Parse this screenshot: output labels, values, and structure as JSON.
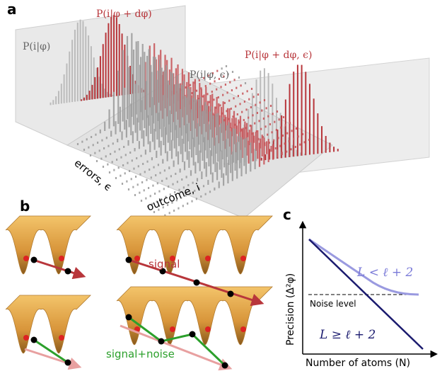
{
  "panels": {
    "a": {
      "label": "a",
      "dist_labels": [
        "P(i|φ)",
        "P(i|φ + dφ)",
        "P(i|φ, ϵ)",
        "P(i|φ + dφ, ϵ)"
      ],
      "axis_labels": [
        "errors, ϵ",
        "outcome, i"
      ]
    },
    "b": {
      "label": "b",
      "annotations": [
        "signal",
        "signal+noise"
      ]
    },
    "c": {
      "label": "c",
      "y_axis": "Precision (Δ²φ)",
      "x_axis": "Number of atoms (N)",
      "noise": "Noise level",
      "curves": [
        "L < ℓ + 2",
        "L ≥ ℓ + 2"
      ]
    }
  }
}
